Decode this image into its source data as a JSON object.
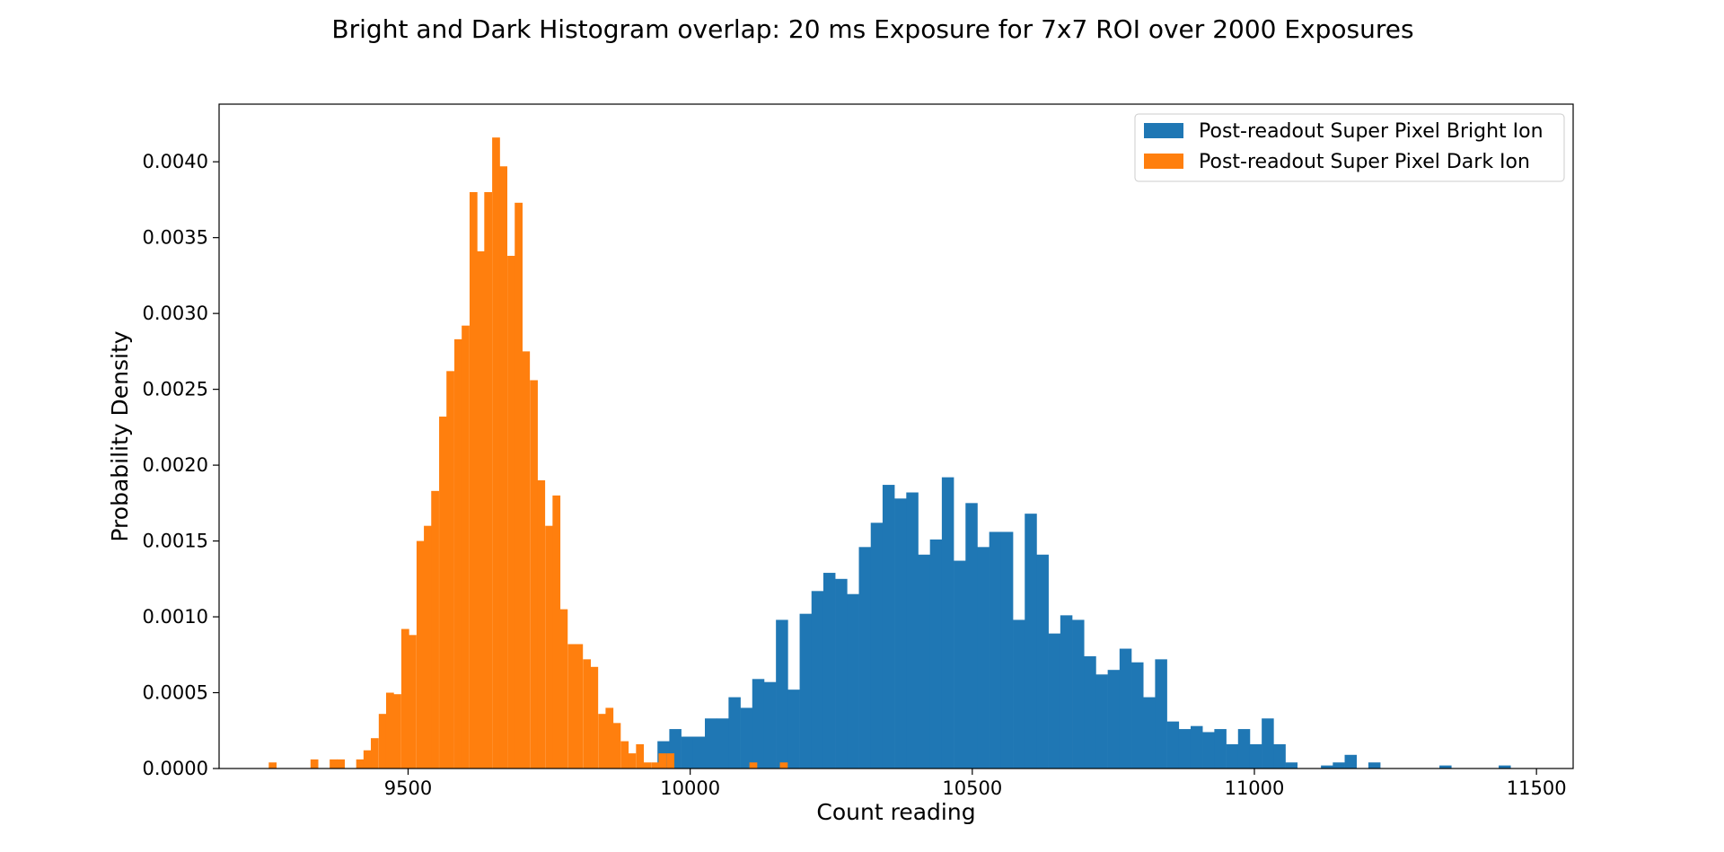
{
  "chart_data": {
    "type": "bar",
    "title": "Bright and Dark Histogram overlap: 20 ms Exposure for 7x7 ROI over 2000 Exposures",
    "xlabel": "Count reading",
    "ylabel": "Probability Density",
    "xlim": [
      9165,
      11565
    ],
    "ylim": [
      0,
      0.00438
    ],
    "xticks": [
      9500,
      10000,
      10500,
      11000,
      11500
    ],
    "xtick_labels": [
      "9500",
      "10000",
      "10500",
      "11000",
      "11500"
    ],
    "yticks": [
      0,
      0.0005,
      0.001,
      0.0015,
      0.002,
      0.0025,
      0.003,
      0.0035,
      0.004
    ],
    "ytick_labels": [
      "0.0000",
      "0.0005",
      "0.0010",
      "0.0015",
      "0.0020",
      "0.0025",
      "0.0030",
      "0.0035",
      "0.0040"
    ],
    "legend_position": "top-right",
    "series": [
      {
        "name": "Post-readout Super Pixel Bright Ion",
        "color": "#1f77b4",
        "bin_width": 21,
        "bins": [
          [
            9942,
            0.00018
          ],
          [
            9963,
            0.00026
          ],
          [
            9984,
            0.00021
          ],
          [
            10005,
            0.00021
          ],
          [
            10026,
            0.00033
          ],
          [
            10047,
            0.00033
          ],
          [
            10068,
            0.00047
          ],
          [
            10089,
            0.0004
          ],
          [
            10110,
            0.00059
          ],
          [
            10131,
            0.00057
          ],
          [
            10152,
            0.00098
          ],
          [
            10173,
            0.00052
          ],
          [
            10194,
            0.00102
          ],
          [
            10215,
            0.00117
          ],
          [
            10236,
            0.00129
          ],
          [
            10257,
            0.00125
          ],
          [
            10278,
            0.00115
          ],
          [
            10299,
            0.00146
          ],
          [
            10320,
            0.00162
          ],
          [
            10341,
            0.00187
          ],
          [
            10362,
            0.00178
          ],
          [
            10383,
            0.00182
          ],
          [
            10404,
            0.00141
          ],
          [
            10425,
            0.00151
          ],
          [
            10446,
            0.00192
          ],
          [
            10467,
            0.00137
          ],
          [
            10488,
            0.00175
          ],
          [
            10509,
            0.00146
          ],
          [
            10530,
            0.00156
          ],
          [
            10551,
            0.00156
          ],
          [
            10572,
            0.00098
          ],
          [
            10593,
            0.00168
          ],
          [
            10614,
            0.00141
          ],
          [
            10635,
            0.00089
          ],
          [
            10656,
            0.00101
          ],
          [
            10677,
            0.00098
          ],
          [
            10698,
            0.00074
          ],
          [
            10719,
            0.00062
          ],
          [
            10740,
            0.00065
          ],
          [
            10761,
            0.00079
          ],
          [
            10782,
            0.0007
          ],
          [
            10803,
            0.00047
          ],
          [
            10824,
            0.00072
          ],
          [
            10845,
            0.00031
          ],
          [
            10866,
            0.00026
          ],
          [
            10887,
            0.00028
          ],
          [
            10908,
            0.00024
          ],
          [
            10929,
            0.00026
          ],
          [
            10950,
            0.00016
          ],
          [
            10971,
            0.00026
          ],
          [
            10992,
            0.00016
          ],
          [
            11013,
            0.00033
          ],
          [
            11034,
            0.00016
          ],
          [
            11055,
            4e-05
          ],
          [
            11118,
            2e-05
          ],
          [
            11139,
            4e-05
          ],
          [
            11160,
            9e-05
          ],
          [
            11202,
            4e-05
          ],
          [
            11328,
            2e-05
          ],
          [
            11433,
            2e-05
          ]
        ]
      },
      {
        "name": "Post-readout Super Pixel Dark Ion",
        "color": "#ff7f0e",
        "bin_width": 13.4,
        "bins": [
          [
            9253,
            4e-05
          ],
          [
            9327,
            6e-05
          ],
          [
            9361,
            6e-05
          ],
          [
            9374,
            6e-05
          ],
          [
            9408,
            6e-05
          ],
          [
            9421,
            0.00012
          ],
          [
            9434,
            0.0002
          ],
          [
            9448,
            0.00036
          ],
          [
            9461,
            0.0005
          ],
          [
            9474,
            0.00049
          ],
          [
            9488,
            0.00092
          ],
          [
            9501,
            0.00088
          ],
          [
            9515,
            0.0015
          ],
          [
            9528,
            0.0016
          ],
          [
            9541,
            0.00183
          ],
          [
            9555,
            0.00232
          ],
          [
            9568,
            0.00262
          ],
          [
            9582,
            0.00283
          ],
          [
            9595,
            0.00292
          ],
          [
            9609,
            0.0038
          ],
          [
            9622,
            0.00341
          ],
          [
            9635,
            0.0038
          ],
          [
            9649,
            0.00416
          ],
          [
            9662,
            0.00397
          ],
          [
            9676,
            0.00338
          ],
          [
            9689,
            0.00373
          ],
          [
            9702,
            0.00275
          ],
          [
            9716,
            0.00256
          ],
          [
            9729,
            0.0019
          ],
          [
            9743,
            0.0016
          ],
          [
            9756,
            0.0018
          ],
          [
            9769,
            0.00105
          ],
          [
            9783,
            0.00082
          ],
          [
            9796,
            0.00082
          ],
          [
            9810,
            0.00072
          ],
          [
            9823,
            0.00067
          ],
          [
            9837,
            0.00036
          ],
          [
            9850,
            0.0004
          ],
          [
            9863,
            0.0003
          ],
          [
            9877,
            0.00018
          ],
          [
            9890,
            0.0001
          ],
          [
            9904,
            0.00016
          ],
          [
            9917,
            4e-05
          ],
          [
            9931,
            4e-05
          ],
          [
            9944,
            0.0001
          ],
          [
            9958,
            0.0001
          ],
          [
            10105,
            4e-05
          ],
          [
            10159,
            4e-05
          ]
        ]
      }
    ]
  }
}
